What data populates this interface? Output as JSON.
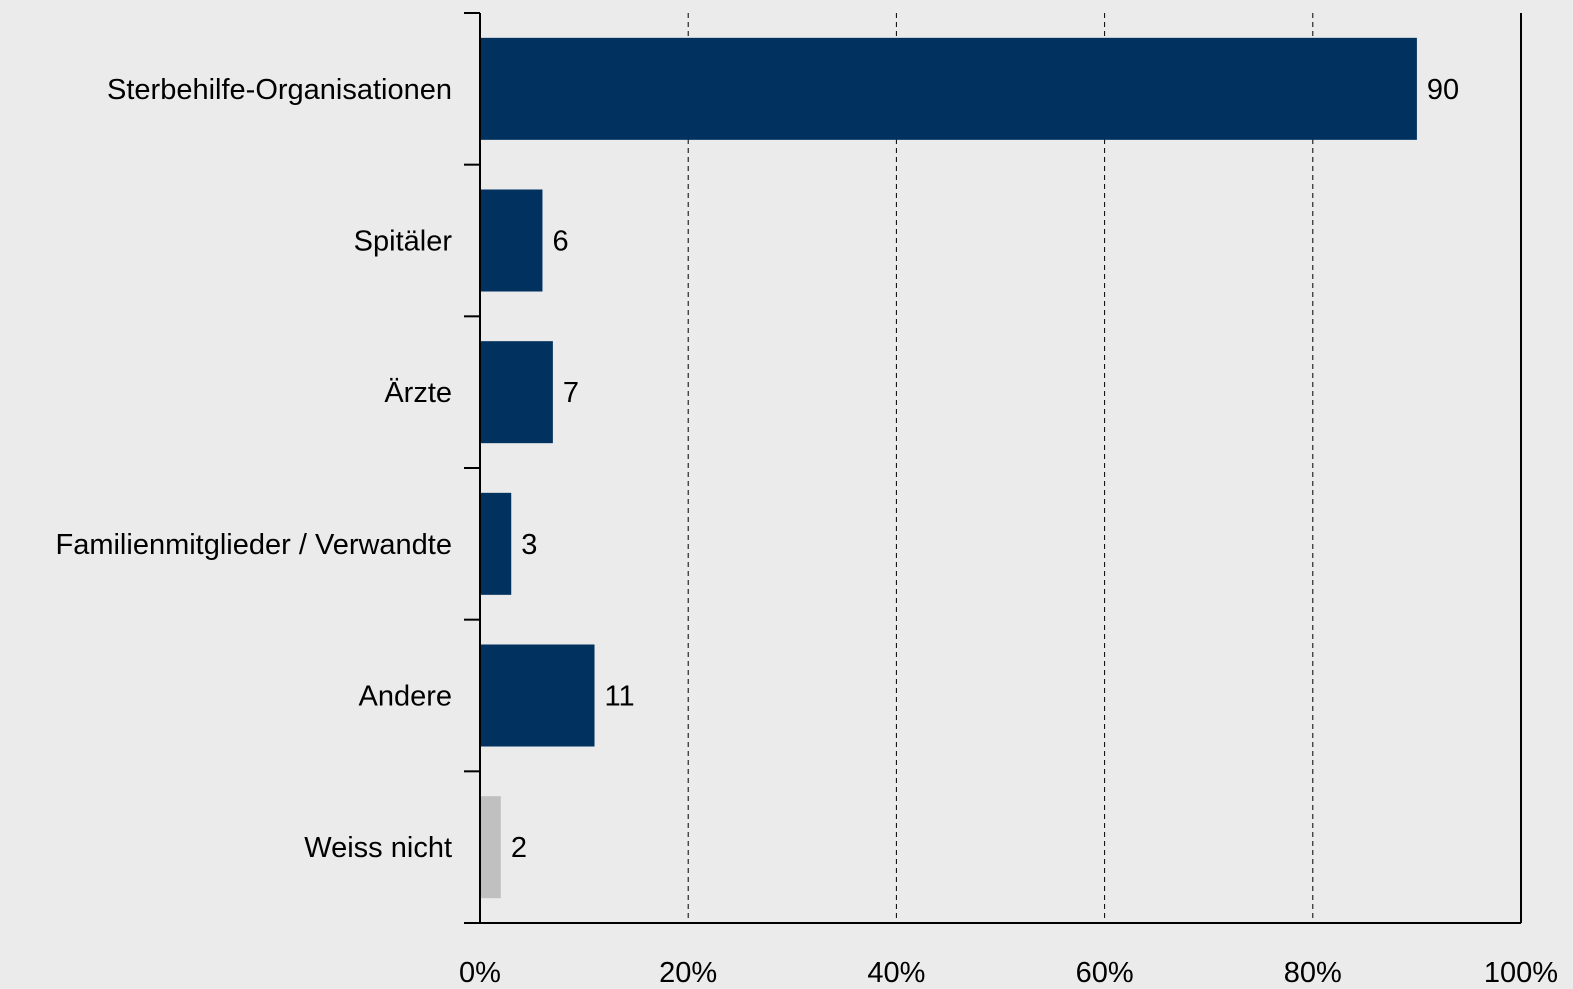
{
  "chart_data": {
    "type": "bar",
    "orientation": "horizontal",
    "categories": [
      "Sterbehilfe-Organisationen",
      "Spitäler",
      "Ärzte",
      "Familienmitglieder / Verwandte",
      "Andere",
      "Weiss nicht"
    ],
    "values": [
      90,
      6,
      7,
      3,
      11,
      2
    ],
    "data_labels": [
      "90",
      "6",
      "7",
      "3",
      "11",
      "2"
    ],
    "bar_colors": [
      "#00315f",
      "#00315f",
      "#00315f",
      "#00315f",
      "#00315f",
      "#c0c0c0"
    ],
    "xlim": [
      0,
      100
    ],
    "x_ticks": [
      0,
      20,
      40,
      60,
      80,
      100
    ],
    "x_tick_labels": [
      "0%",
      "20%",
      "40%",
      "60%",
      "80%",
      "100%"
    ],
    "grid": "vertical-dashed",
    "legend": "none",
    "background_color": "#ebebeb"
  }
}
